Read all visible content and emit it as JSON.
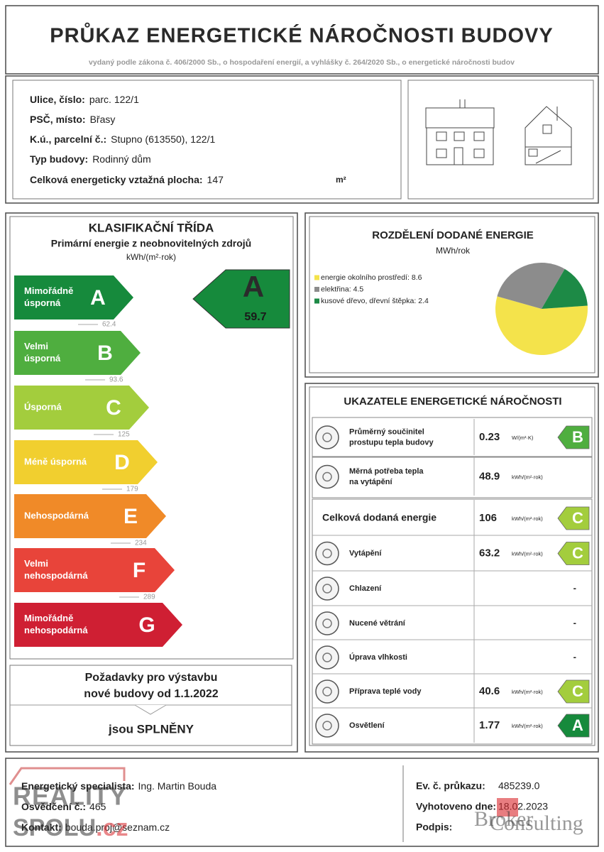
{
  "header": {
    "title": "PRŮKAZ ENERGETICKÉ NÁROČNOSTI BUDOVY",
    "subtitle": "vydaný podle zákona č. 406/2000 Sb., o hospodaření energií, a vyhlášky č. 264/2020 Sb., o energetické náročnosti budov"
  },
  "building": {
    "fields": [
      {
        "label": "Ulice, číslo:",
        "value": "parc. 122/1"
      },
      {
        "label": "PSČ, místo:",
        "value": "Břasy"
      },
      {
        "label": "K.ú., parcelní č.:",
        "value": "Stupno (613550), 122/1"
      },
      {
        "label": "Typ budovy:",
        "value": "Rodinný dům"
      },
      {
        "label": "Celková energeticky vztažná plocha:",
        "value": 147
      }
    ],
    "area_unit": "m²"
  },
  "classification": {
    "title": "KLASIFIKAČNÍ TŘÍDA",
    "subtitle": "Primární energie z neobnovitelných zdrojů",
    "unit": "kWh/(m²·rok)",
    "classes": [
      {
        "name": [
          "Mimořádně",
          "úsporná"
        ],
        "letter": "A",
        "color": "#168a3c",
        "limit": 62.4
      },
      {
        "name": [
          "Velmi",
          "úsporná"
        ],
        "letter": "B",
        "color": "#4fae3f",
        "limit": 93.6
      },
      {
        "name": [
          "Úsporná"
        ],
        "letter": "C",
        "color": "#a3cd3d",
        "limit": 125
      },
      {
        "name": [
          "Méně úsporná"
        ],
        "letter": "D",
        "color": "#f1cf2f",
        "limit": 179
      },
      {
        "name": [
          "Nehospodárná"
        ],
        "letter": "E",
        "color": "#f08a28",
        "limit": 234
      },
      {
        "name": [
          "Velmi",
          "nehospodárná"
        ],
        "letter": "F",
        "color": "#e8443a",
        "limit": 289
      },
      {
        "name": [
          "Mimořádně",
          "nehospodárná"
        ],
        "letter": "G",
        "color": "#cf1f33"
      }
    ],
    "result": {
      "letter": "A",
      "value": 59.7,
      "color": "#168a3c"
    },
    "requirements": {
      "text": [
        "Požadavky pro výstavbu",
        "nové budovy od 1.1.2022"
      ],
      "result": "jsou SPLNĚNY"
    }
  },
  "energy_split": {
    "title": "ROZDĚLENÍ DODANÉ ENERGIE",
    "unit": "MWh/rok",
    "type": "pie",
    "series": [
      {
        "name": "energie okolního prostředí:",
        "value": 8.6,
        "color": "#f4e34b"
      },
      {
        "name": "elektřina:",
        "value": 4.5,
        "color": "#8c8c8c"
      },
      {
        "name": "kusové dřevo, dřevní štěpka:",
        "value": 2.4,
        "color": "#1d8a46"
      }
    ]
  },
  "indicators": {
    "title": "UKAZATELE ENERGETICKÉ NÁROČNOSTI",
    "rows": [
      {
        "label": [
          "Průměrný součinitel",
          "prostupu tepla budovy"
        ],
        "value": 0.23,
        "unit": "W/(m²·K)",
        "class": "B"
      },
      {
        "label": [
          "Měrná potřeba tepla",
          "na vytápění"
        ],
        "value": 48.9,
        "unit": "kWh/(m²·rok)"
      },
      {
        "label": [
          "Celková dodaná energie"
        ],
        "value": 106,
        "unit": "kWh/(m²·rok)",
        "class": "C"
      },
      {
        "label": [
          "Vytápění"
        ],
        "value": 63.2,
        "unit": "kWh/(m²·rok)",
        "class": "C"
      },
      {
        "label": [
          "Chlazení"
        ],
        "value": "-"
      },
      {
        "label": [
          "Nucené větrání"
        ],
        "value": "-"
      },
      {
        "label": [
          "Úprava vlhkosti"
        ],
        "value": "-"
      },
      {
        "label": [
          "Příprava teplé vody"
        ],
        "value": 40.6,
        "unit": "kWh/(m²·rok)",
        "class": "C"
      },
      {
        "label": [
          "Osvětlení"
        ],
        "value": 1.77,
        "unit": "kWh/(m²·rok)",
        "class": "A"
      }
    ]
  },
  "footer": {
    "left": [
      {
        "label": "Energetický specialista:",
        "value": "Ing. Martin Bouda"
      },
      {
        "label": "Osvědčení č.:",
        "value": "465"
      },
      {
        "label": "Kontakt:",
        "value": "bouda.proj@seznam.cz"
      }
    ],
    "right": [
      {
        "label": "Ev. č. průkazu:",
        "value": "485239.0"
      },
      {
        "label": "Vyhotoveno dne:",
        "value": "18.02.2023"
      },
      {
        "label": "Podpis:"
      }
    ],
    "watermarks": {
      "reality": [
        "REALITY",
        "SPOLU",
        ".cz"
      ],
      "broker": [
        "Broker",
        "Consulting"
      ]
    }
  }
}
